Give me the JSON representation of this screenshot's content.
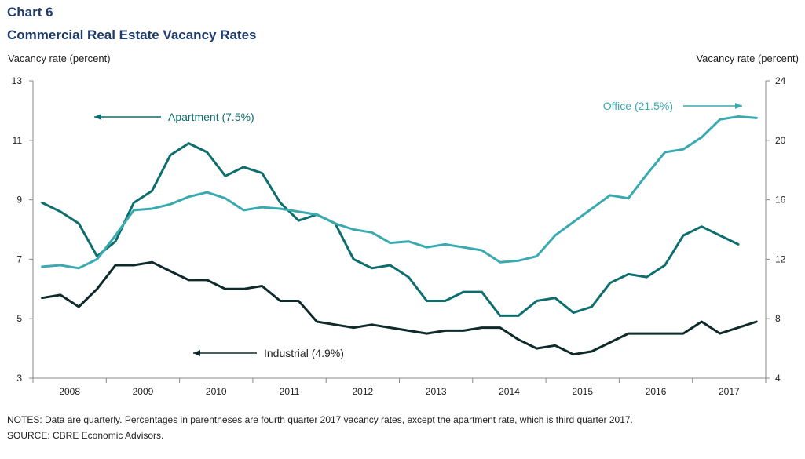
{
  "chart_data": {
    "type": "line",
    "title": "Chart 6",
    "subtitle": "Commercial Real Estate Vacancy Rates",
    "ylabel_left": "Vacancy rate (percent)",
    "ylabel_right": "Vacancy rate (percent)",
    "ylim_left": [
      3,
      13
    ],
    "ylim_right": [
      4,
      24
    ],
    "yticks_left": [
      "13",
      "11",
      "9",
      "7",
      "5",
      "3"
    ],
    "yticks_right": [
      "24",
      "20",
      "16",
      "12",
      "8",
      "4"
    ],
    "x_tick_labels": [
      "2008",
      "2009",
      "2010",
      "2011",
      "2012",
      "2013",
      "2014",
      "2015",
      "2016",
      "2017"
    ],
    "series": [
      {
        "name": "Apartment",
        "label": "Apartment  (7.5%)",
        "axis": "left",
        "color": "#0e6e6e",
        "x": [
          "2008Q1",
          "2008Q2",
          "2008Q3",
          "2008Q4",
          "2009Q1",
          "2009Q2",
          "2009Q3",
          "2009Q4",
          "2010Q1",
          "2010Q2",
          "2010Q3",
          "2010Q4",
          "2011Q1",
          "2011Q2",
          "2011Q3",
          "2011Q4",
          "2012Q1",
          "2012Q2",
          "2012Q3",
          "2012Q4",
          "2013Q1",
          "2013Q2",
          "2013Q3",
          "2013Q4",
          "2014Q1",
          "2014Q2",
          "2014Q3",
          "2014Q4",
          "2015Q1",
          "2015Q2",
          "2015Q3",
          "2015Q4",
          "2016Q1",
          "2016Q2",
          "2016Q3",
          "2016Q4",
          "2017Q1",
          "2017Q2",
          "2017Q3"
        ],
        "values": [
          8.9,
          8.6,
          8.2,
          7.1,
          7.6,
          8.9,
          9.3,
          10.5,
          10.9,
          10.6,
          9.8,
          10.1,
          9.9,
          8.9,
          8.3,
          8.5,
          8.2,
          7.0,
          6.7,
          6.8,
          6.4,
          5.6,
          5.6,
          5.9,
          5.9,
          5.1,
          5.1,
          5.6,
          5.7,
          5.2,
          5.4,
          6.2,
          6.5,
          6.4,
          6.8,
          7.8,
          8.1,
          7.8,
          7.5
        ]
      },
      {
        "name": "Office",
        "label": "Office  (21.5%)",
        "axis": "right",
        "color": "#3aaab0",
        "x": [
          "2008Q1",
          "2008Q2",
          "2008Q3",
          "2008Q4",
          "2009Q1",
          "2009Q2",
          "2009Q3",
          "2009Q4",
          "2010Q1",
          "2010Q2",
          "2010Q3",
          "2010Q4",
          "2011Q1",
          "2011Q2",
          "2011Q3",
          "2011Q4",
          "2012Q1",
          "2012Q2",
          "2012Q3",
          "2012Q4",
          "2013Q1",
          "2013Q2",
          "2013Q3",
          "2013Q4",
          "2014Q1",
          "2014Q2",
          "2014Q3",
          "2014Q4",
          "2015Q1",
          "2015Q2",
          "2015Q3",
          "2015Q4",
          "2016Q1",
          "2016Q2",
          "2016Q3",
          "2016Q4",
          "2017Q1",
          "2017Q2",
          "2017Q3",
          "2017Q4"
        ],
        "values": [
          11.5,
          11.6,
          11.4,
          12.0,
          13.6,
          15.3,
          15.4,
          15.7,
          16.2,
          16.5,
          16.1,
          15.3,
          15.5,
          15.4,
          15.2,
          15.0,
          14.4,
          14.0,
          13.8,
          13.1,
          13.2,
          12.8,
          13.0,
          12.8,
          12.6,
          11.8,
          11.9,
          12.2,
          13.6,
          14.5,
          15.4,
          16.3,
          16.1,
          17.7,
          19.2,
          19.4,
          20.2,
          21.4,
          21.6,
          21.5
        ]
      },
      {
        "name": "Industrial",
        "label": "Industrial  (4.9%)",
        "axis": "left",
        "color": "#0f2a2a",
        "x": [
          "2008Q1",
          "2008Q2",
          "2008Q3",
          "2008Q4",
          "2009Q1",
          "2009Q2",
          "2009Q3",
          "2009Q4",
          "2010Q1",
          "2010Q2",
          "2010Q3",
          "2010Q4",
          "2011Q1",
          "2011Q2",
          "2011Q3",
          "2011Q4",
          "2012Q1",
          "2012Q2",
          "2012Q3",
          "2012Q4",
          "2013Q1",
          "2013Q2",
          "2013Q3",
          "2013Q4",
          "2014Q1",
          "2014Q2",
          "2014Q3",
          "2014Q4",
          "2015Q1",
          "2015Q2",
          "2015Q3",
          "2015Q4",
          "2016Q1",
          "2016Q2",
          "2016Q3",
          "2016Q4",
          "2017Q1",
          "2017Q2",
          "2017Q3",
          "2017Q4"
        ],
        "values": [
          5.7,
          5.8,
          5.4,
          6.0,
          6.8,
          6.8,
          6.9,
          6.6,
          6.3,
          6.3,
          6.0,
          6.0,
          6.1,
          5.6,
          5.6,
          4.9,
          4.8,
          4.7,
          4.8,
          4.7,
          4.6,
          4.5,
          4.6,
          4.6,
          4.7,
          4.7,
          4.3,
          4.0,
          4.1,
          3.8,
          3.9,
          4.2,
          4.5,
          4.5,
          4.5,
          4.5,
          4.9,
          4.5,
          4.7,
          4.9
        ]
      }
    ],
    "grid": false,
    "notes": "NOTES:  Data are quarterly. Percentages in parentheses are fourth quarter 2017 vacancy rates, except the apartment rate, which is third quarter 2017.",
    "source": "SOURCE:  CBRE Economic Advisors."
  }
}
